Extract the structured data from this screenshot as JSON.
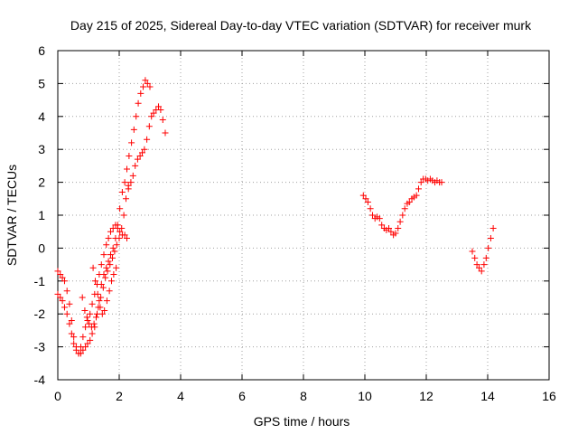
{
  "chart_data": {
    "type": "scatter",
    "title": "Day 215 of 2025, Sidereal Day-to-day VTEC variation (SDTVAR) for receiver murk",
    "xlabel": "GPS time / hours",
    "ylabel": "SDTVAR / TECUs",
    "xlim": [
      0,
      16
    ],
    "ylim": [
      -4,
      6
    ],
    "xticks": [
      "0",
      "2",
      "4",
      "6",
      "8",
      "10",
      "12",
      "14",
      "16"
    ],
    "yticks": [
      "-4",
      "-3",
      "-2",
      "-1",
      "0",
      "1",
      "2",
      "3",
      "4",
      "5",
      "6"
    ],
    "grid": true,
    "marker": "+",
    "color": "#ff0000",
    "series": [
      {
        "x": [
          0.0,
          0.08,
          0.15,
          0.22,
          0.3,
          0.38,
          0.45,
          0.52,
          0.6,
          0.68,
          0.75,
          0.82,
          0.9,
          0.97,
          1.05,
          1.12,
          1.2,
          1.28,
          1.35,
          1.42,
          1.5,
          1.58,
          1.65,
          1.72,
          1.8,
          1.88,
          1.95,
          2.02,
          2.1,
          2.18,
          2.25,
          2.32,
          2.4,
          2.48,
          2.55,
          2.62,
          2.7,
          2.78,
          2.85,
          2.92,
          3.0
        ],
        "y": [
          -0.7,
          -0.8,
          -0.9,
          -1.0,
          -1.3,
          -1.7,
          -2.2,
          -2.7,
          -3.0,
          -3.2,
          -3.2,
          -3.1,
          -3.0,
          -2.9,
          -2.8,
          -2.6,
          -2.4,
          -2.0,
          -1.6,
          -1.1,
          -0.8,
          -0.6,
          -0.4,
          -0.2,
          0.0,
          0.3,
          0.7,
          1.2,
          1.7,
          2.0,
          2.4,
          2.8,
          3.2,
          3.6,
          4.0,
          4.4,
          4.7,
          4.9,
          5.1,
          5.0,
          4.9
        ]
      },
      {
        "x": [
          0.0,
          0.08,
          0.15,
          0.22,
          0.3,
          0.38,
          0.45,
          0.52,
          0.6,
          0.68,
          0.75,
          0.82,
          0.9,
          0.97,
          1.05,
          1.12,
          1.2,
          1.28,
          1.35,
          1.42,
          1.5,
          1.58,
          1.65,
          1.72,
          1.8,
          1.88,
          1.95,
          2.02,
          2.1,
          2.18,
          2.25
        ],
        "y": [
          -1.4,
          -1.5,
          -1.6,
          -1.8,
          -2.0,
          -2.3,
          -2.6,
          -2.9,
          -3.1,
          -3.2,
          -3.0,
          -2.7,
          -2.4,
          -2.2,
          -2.0,
          -1.7,
          -1.4,
          -1.1,
          -0.8,
          -0.5,
          -0.2,
          0.1,
          0.3,
          0.5,
          0.6,
          0.7,
          0.6,
          0.5,
          0.4,
          0.4,
          0.3
        ]
      },
      {
        "x": [
          0.8,
          0.88,
          0.95,
          1.02,
          1.1,
          1.18,
          1.25,
          1.32,
          1.4,
          1.48,
          1.55,
          1.62,
          1.7,
          1.78,
          1.85,
          1.92,
          2.0,
          2.08,
          2.15,
          2.22,
          2.3
        ],
        "y": [
          -1.5,
          -1.9,
          -2.1,
          -2.3,
          -2.4,
          -2.3,
          -2.1,
          -1.8,
          -1.5,
          -1.2,
          -0.9,
          -0.7,
          -0.5,
          -0.3,
          -0.1,
          0.1,
          0.3,
          0.6,
          1.0,
          1.5,
          1.9
        ]
      },
      {
        "x": [
          1.15,
          1.22,
          1.3,
          1.38,
          1.45,
          1.52,
          1.6,
          1.68,
          1.75,
          1.82,
          1.9
        ],
        "y": [
          -0.6,
          -1.0,
          -1.4,
          -1.8,
          -2.0,
          -1.9,
          -1.6,
          -1.3,
          -1.0,
          -0.8,
          -0.6
        ]
      },
      {
        "x": [
          2.3,
          2.38,
          2.45,
          2.52,
          2.6,
          2.68,
          2.75,
          2.82,
          2.9,
          2.98,
          3.05,
          3.12,
          3.2,
          3.28,
          3.35,
          3.42,
          3.5
        ],
        "y": [
          1.8,
          2.0,
          2.2,
          2.5,
          2.7,
          2.8,
          2.9,
          3.0,
          3.3,
          3.7,
          4.0,
          4.1,
          4.2,
          4.3,
          4.2,
          3.9,
          3.5
        ]
      },
      {
        "x": [
          9.95,
          10.03,
          10.1,
          10.18,
          10.25,
          10.33,
          10.4,
          10.48,
          10.55,
          10.63,
          10.7,
          10.78,
          10.85,
          10.93,
          11.0,
          11.08,
          11.15,
          11.23,
          11.3,
          11.38,
          11.45,
          11.53,
          11.6,
          11.68,
          11.75,
          11.83,
          11.9,
          11.98,
          12.05,
          12.13,
          12.2,
          12.28,
          12.35,
          12.43,
          12.5
        ],
        "y": [
          1.6,
          1.5,
          1.4,
          1.2,
          1.0,
          0.9,
          0.95,
          0.9,
          0.7,
          0.6,
          0.55,
          0.6,
          0.5,
          0.4,
          0.45,
          0.6,
          0.8,
          1.0,
          1.2,
          1.35,
          1.4,
          1.5,
          1.55,
          1.6,
          1.8,
          2.0,
          2.1,
          2.1,
          2.05,
          2.1,
          2.05,
          2.0,
          2.05,
          2.0,
          2.0
        ]
      },
      {
        "x": [
          13.5,
          13.58,
          13.65,
          13.72,
          13.8,
          13.88,
          13.95,
          14.02,
          14.1,
          14.18
        ],
        "y": [
          -0.1,
          -0.3,
          -0.5,
          -0.6,
          -0.7,
          -0.5,
          -0.3,
          0.0,
          0.3,
          0.6
        ]
      }
    ]
  }
}
